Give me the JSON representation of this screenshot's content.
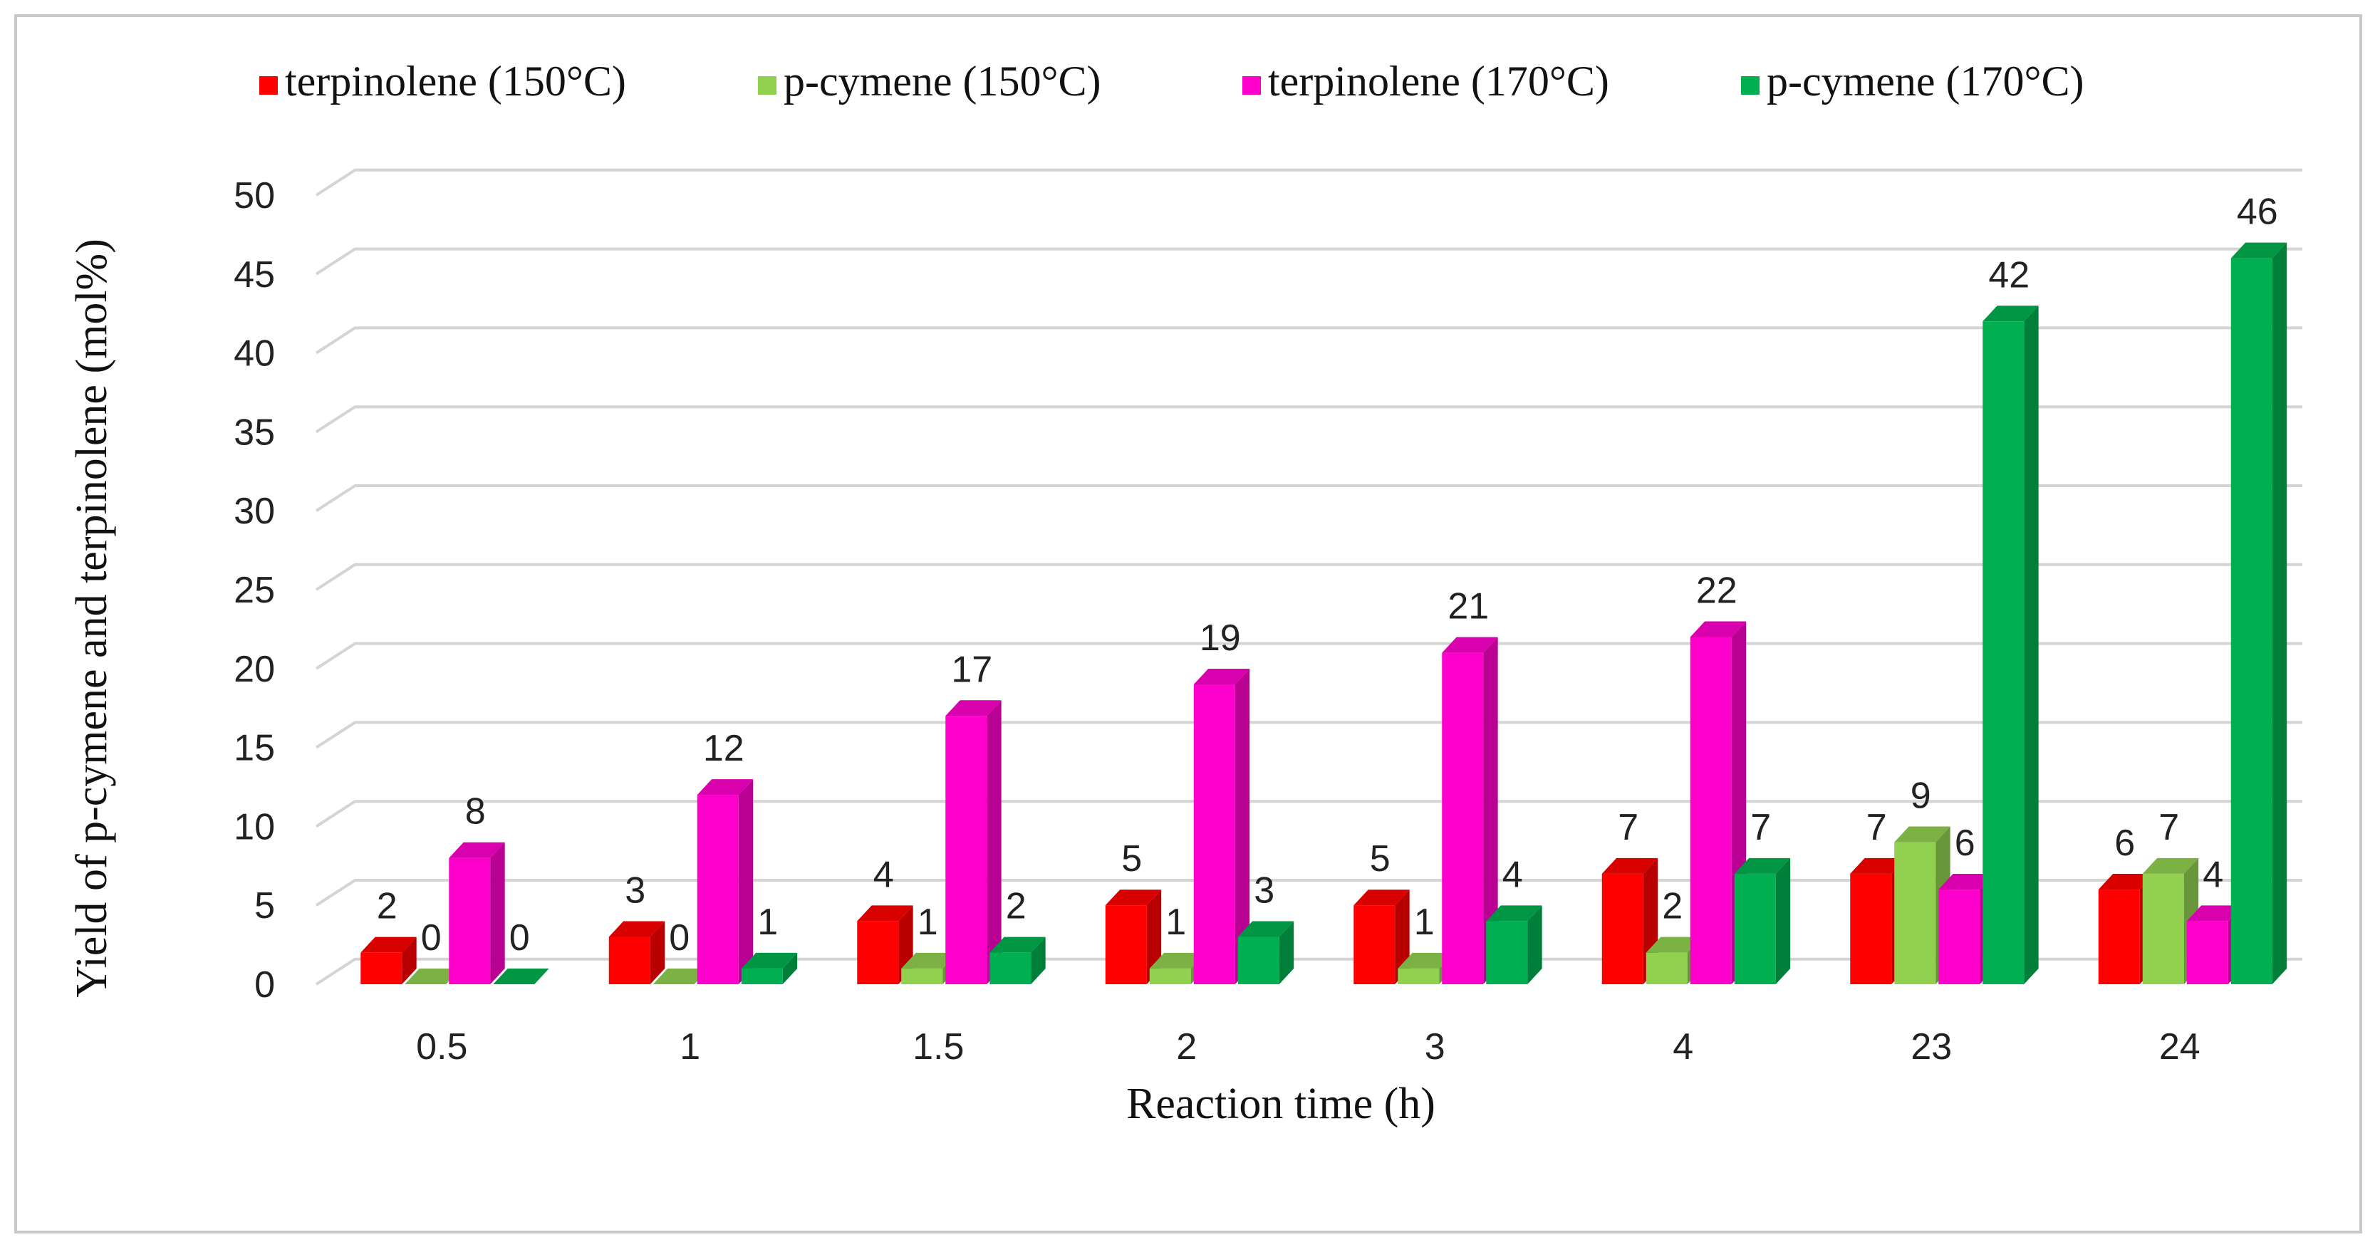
{
  "chart_data": {
    "type": "bar",
    "title": "",
    "xlabel": "Reaction time (h)",
    "ylabel": "Yield of p-cymene and terpinolene (mol%)",
    "ylim": [
      0,
      50
    ],
    "yticks": [
      0,
      5,
      10,
      15,
      20,
      25,
      30,
      35,
      40,
      45,
      50
    ],
    "categories": [
      "0.5",
      "1",
      "1.5",
      "2",
      "3",
      "4",
      "23",
      "24"
    ],
    "legend_position": "top",
    "grid": true,
    "style": "3d-column",
    "series": [
      {
        "name": "terpinolene (150°C)",
        "color": "#ff0000",
        "values": [
          2,
          3,
          4,
          5,
          5,
          7,
          7,
          6
        ]
      },
      {
        "name": "p-cymene (150°C)",
        "color": "#92d050",
        "values": [
          0,
          0,
          1,
          1,
          1,
          2,
          9,
          7
        ]
      },
      {
        "name": "terpinolene (170°C)",
        "color": "#ff00cc",
        "values": [
          8,
          12,
          17,
          19,
          21,
          22,
          6,
          4
        ]
      },
      {
        "name": "p-cymene (170°C)",
        "color": "#00b050",
        "values": [
          0,
          1,
          2,
          3,
          4,
          7,
          42,
          46
        ]
      }
    ]
  }
}
